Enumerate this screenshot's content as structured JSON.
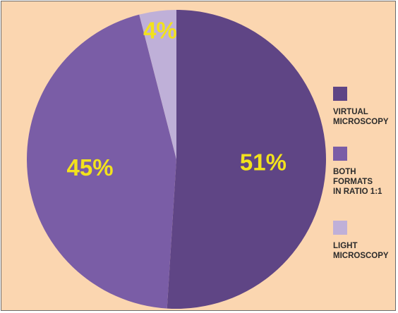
{
  "chart_data": {
    "type": "pie",
    "slices": [
      {
        "label": "VIRTUAL\nMICROSCOPY",
        "value": 51,
        "value_label": "51%",
        "color": "#5f4585"
      },
      {
        "label": "BOTH\nFORMATS\nIN RATIO 1:1",
        "value": 45,
        "value_label": "45%",
        "color": "#7a5da6"
      },
      {
        "label": "LIGHT\nMICROSCOPY",
        "value": 4,
        "value_label": "4%",
        "color": "#bfb0d8"
      }
    ],
    "start": "12 o'clock",
    "direction": "clockwise",
    "legend_position": "right",
    "background_color": "#fbd6b0",
    "value_label_color": "#f2e21d",
    "title": ""
  }
}
